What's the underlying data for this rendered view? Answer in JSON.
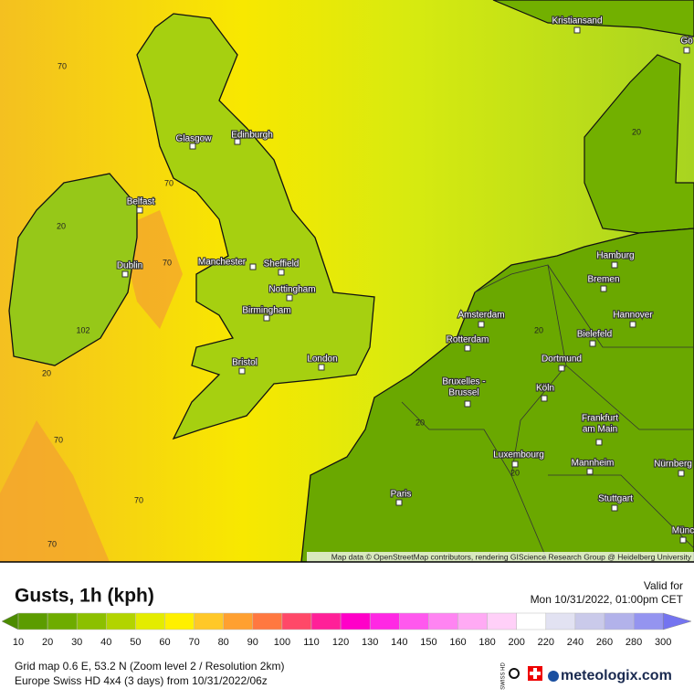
{
  "map": {
    "cities": [
      {
        "lines": [
          "Kristiansand"
        ]
      },
      {
        "lines": [
          "Glasgow"
        ]
      },
      {
        "lines": [
          "Edinburgh"
        ]
      },
      {
        "lines": [
          "Belfast"
        ]
      },
      {
        "lines": [
          "Dublin"
        ]
      },
      {
        "lines": [
          "Manchester"
        ]
      },
      {
        "lines": [
          "Sheffield"
        ]
      },
      {
        "lines": [
          "Nottingham"
        ]
      },
      {
        "lines": [
          "Birmingham"
        ]
      },
      {
        "lines": [
          "Bristol"
        ]
      },
      {
        "lines": [
          "London"
        ]
      },
      {
        "lines": [
          "Amsterdam"
        ]
      },
      {
        "lines": [
          "Rotterdam"
        ]
      },
      {
        "lines": [
          "Bruxelles -",
          "Brussel"
        ]
      },
      {
        "lines": [
          "Luxembourg"
        ]
      },
      {
        "lines": [
          "Paris"
        ]
      },
      {
        "lines": [
          "Hamburg"
        ]
      },
      {
        "lines": [
          "Bremen"
        ]
      },
      {
        "lines": [
          "Hannover"
        ]
      },
      {
        "lines": [
          "Bielefeld"
        ]
      },
      {
        "lines": [
          "Dortmund"
        ]
      },
      {
        "lines": [
          "Köln"
        ]
      },
      {
        "lines": [
          "Frankfurt",
          "am Main"
        ]
      },
      {
        "lines": [
          "Mannheim"
        ]
      },
      {
        "lines": [
          "Nürnberg"
        ]
      },
      {
        "lines": [
          "Stuttgart"
        ]
      },
      {
        "lines": [
          "Münc"
        ]
      },
      {
        "lines": [
          "Gö"
        ]
      }
    ],
    "contour_labels": [
      70,
      70,
      70,
      20,
      102,
      20,
      70,
      70,
      70,
      20,
      20,
      20,
      20
    ],
    "attribution": "Map data © OpenStreetMap contributors, rendering GIScience Research Group @ Heidelberg University"
  },
  "legend": {
    "title": "Gusts, 1h (kph)",
    "valid_label": "Valid for",
    "valid_time": "Mon 10/31/2022, 01:00pm CET",
    "ticks": [
      10,
      20,
      30,
      40,
      50,
      60,
      70,
      80,
      90,
      100,
      110,
      120,
      130,
      140,
      150,
      160,
      180,
      200,
      220,
      240,
      260,
      280,
      300
    ],
    "colors": [
      "#4c8c00",
      "#5c9c00",
      "#6eac00",
      "#8cc000",
      "#b2d400",
      "#e4ec00",
      "#fff000",
      "#ffc828",
      "#ffa030",
      "#ff7840",
      "#ff4868",
      "#ff2098",
      "#ff00c8",
      "#ff28e4",
      "#ff58ee",
      "#ff84f2",
      "#ffaaf4",
      "#ffd0f8",
      "#ffffff",
      "#e2e2f2",
      "#cacaea",
      "#b2b2ea",
      "#9494f0",
      "#7474f0"
    ]
  },
  "footer": {
    "grid_info": "Grid map 0.6 E, 53.2 N (Zoom level 2 / Resolution 2km)",
    "model_info": "Europe Swiss HD 4x4 (3 days) from  10/31/2022/06z",
    "badge": "SWISS HD",
    "brand": "meteologix.com"
  }
}
